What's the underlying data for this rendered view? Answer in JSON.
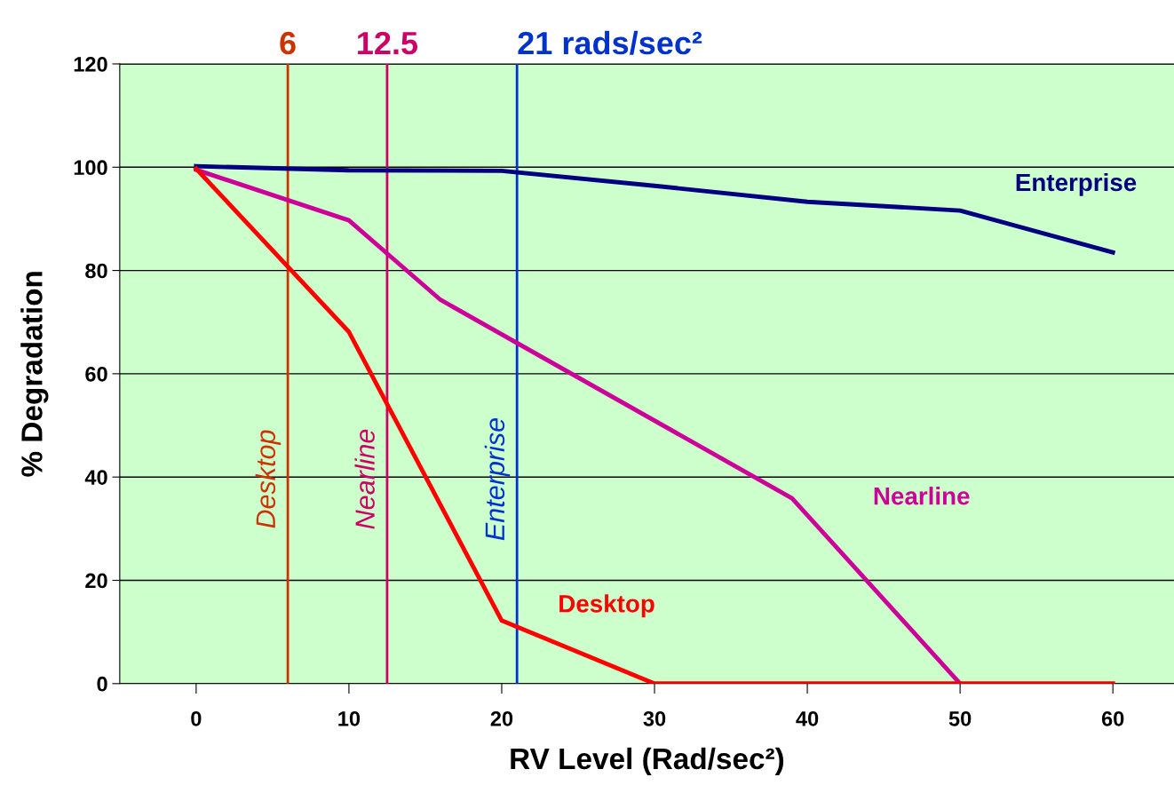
{
  "chart_data": {
    "type": "line",
    "xlabel": "RV Level (Rad/sec²)",
    "ylabel": "% Degradation",
    "xlim": [
      -5,
      64
    ],
    "ylim": [
      0,
      120
    ],
    "xticks": [
      0,
      10,
      20,
      30,
      40,
      50,
      60
    ],
    "yticks": [
      0,
      20,
      40,
      60,
      80,
      100,
      120
    ],
    "grid": "y",
    "marker": "none",
    "line_style": "solid",
    "series": [
      {
        "name": "Enterprise",
        "color": "#000080",
        "x": [
          0,
          10,
          20,
          30,
          40,
          50,
          60
        ],
        "values": [
          100.2,
          99.4,
          99.3,
          96.4,
          93.3,
          91.6,
          83.5
        ]
      },
      {
        "name": "Nearline",
        "color": "#cc0099",
        "x": [
          0,
          10,
          16,
          39,
          50
        ],
        "values": [
          99.5,
          89.7,
          74.3,
          35.9,
          0
        ]
      },
      {
        "name": "Desktop",
        "color": "#ff0000",
        "x": [
          0,
          10,
          20,
          30,
          40,
          50,
          60
        ],
        "values": [
          99.7,
          68.1,
          12.2,
          0,
          0,
          0,
          0
        ]
      }
    ],
    "ref_lines": [
      {
        "axis": "x",
        "value": 6,
        "label": "6",
        "color": "#cc3300"
      },
      {
        "axis": "x",
        "value": 12.5,
        "label": "12.5",
        "color": "#cc0066"
      },
      {
        "axis": "x",
        "value": 21,
        "label": "21 rads/sec²",
        "color": "#0033cc"
      }
    ],
    "annotations": [
      "Desktop",
      "Nearline",
      "Enterprise"
    ]
  }
}
